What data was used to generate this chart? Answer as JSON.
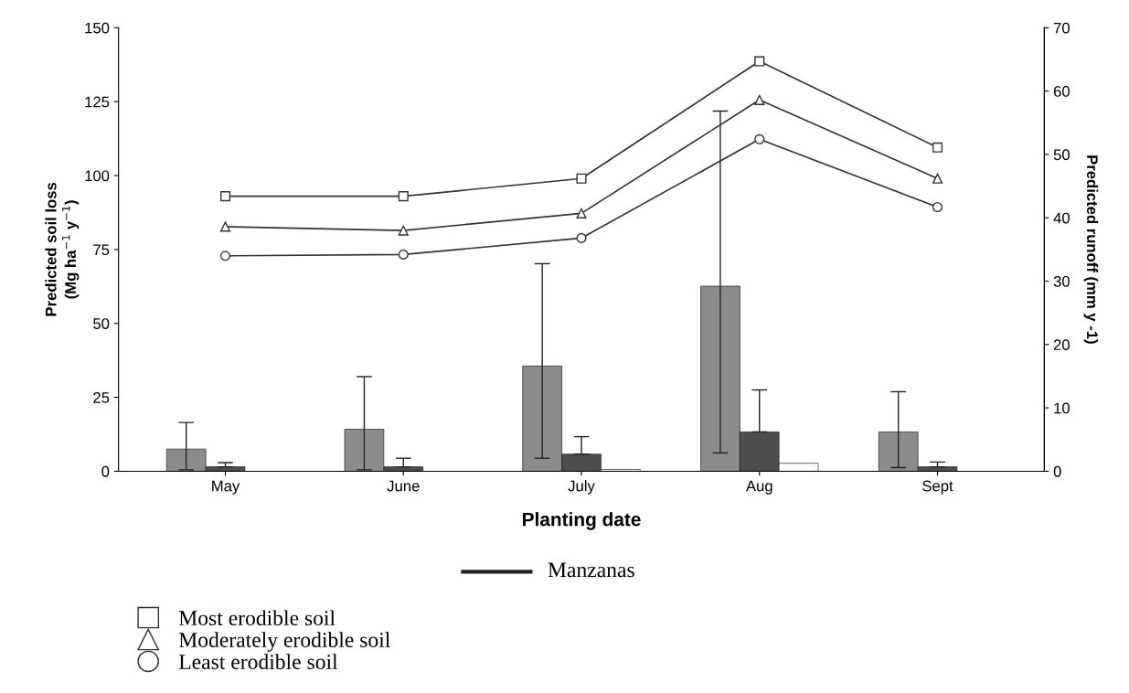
{
  "chart_data": {
    "type": "bar",
    "xlabel": "Planting date",
    "ylabel": "Predicted soil loss\n(Mg ha$^{−1}$ y$^{−1}$)",
    "y2label": "Predicted runoff (mm y -1)",
    "categories": [
      "May",
      "June",
      "July",
      "Aug",
      "Sept"
    ],
    "series": [
      {
        "color": "#8c8c8c",
        "values": [
          7.5,
          14.2,
          35.6,
          62.6,
          13.3
        ],
        "errors": [
          [
            0.5,
            16.5
          ],
          [
            0.5,
            32
          ],
          [
            4.4,
            70.2
          ],
          [
            6.2,
            121.8
          ],
          [
            1.2,
            26.9
          ]
        ]
      },
      {
        "color": "#4d4d4d",
        "values": [
          1.5,
          1.5,
          5.8,
          13.3,
          1.5
        ],
        "errors": [
          [
            1.5,
            2.9
          ],
          [
            1.5,
            4.4
          ],
          [
            5.8,
            11.7
          ],
          [
            13.3,
            27.5
          ],
          [
            1.5,
            3.1
          ]
        ]
      },
      {
        "color": "#ffffff",
        "values": [
          null,
          null,
          0.6,
          2.7,
          null
        ]
      },
      {
        "type": "line",
        "axis": "y2",
        "name": "Most erodible soil",
        "color": "#333333",
        "marker": "square",
        "values": [
          43.4,
          43.4,
          46.2,
          64.7,
          51.1
        ]
      },
      {
        "type": "line",
        "axis": "y2",
        "name": "Moderately erodible soil",
        "color": "#333333",
        "marker": "triangle",
        "values": [
          38.6,
          38,
          40.7,
          58.6,
          46.2
        ]
      },
      {
        "type": "line",
        "axis": "y2",
        "name": "Least erodible soil",
        "color": "#333333",
        "marker": "circle",
        "values": [
          34,
          34.2,
          36.8,
          52.4,
          41.7
        ]
      }
    ],
    "annotations": [
      "Manzanas"
    ],
    "ylim": [
      0,
      150
    ],
    "yticks": [
      0,
      25,
      50,
      75,
      100,
      125,
      150
    ],
    "y2lim": [
      0,
      70
    ],
    "y2ticks": [
      0,
      10,
      20,
      30,
      40,
      50,
      60,
      70
    ],
    "grid": false,
    "legend": "bottom"
  }
}
